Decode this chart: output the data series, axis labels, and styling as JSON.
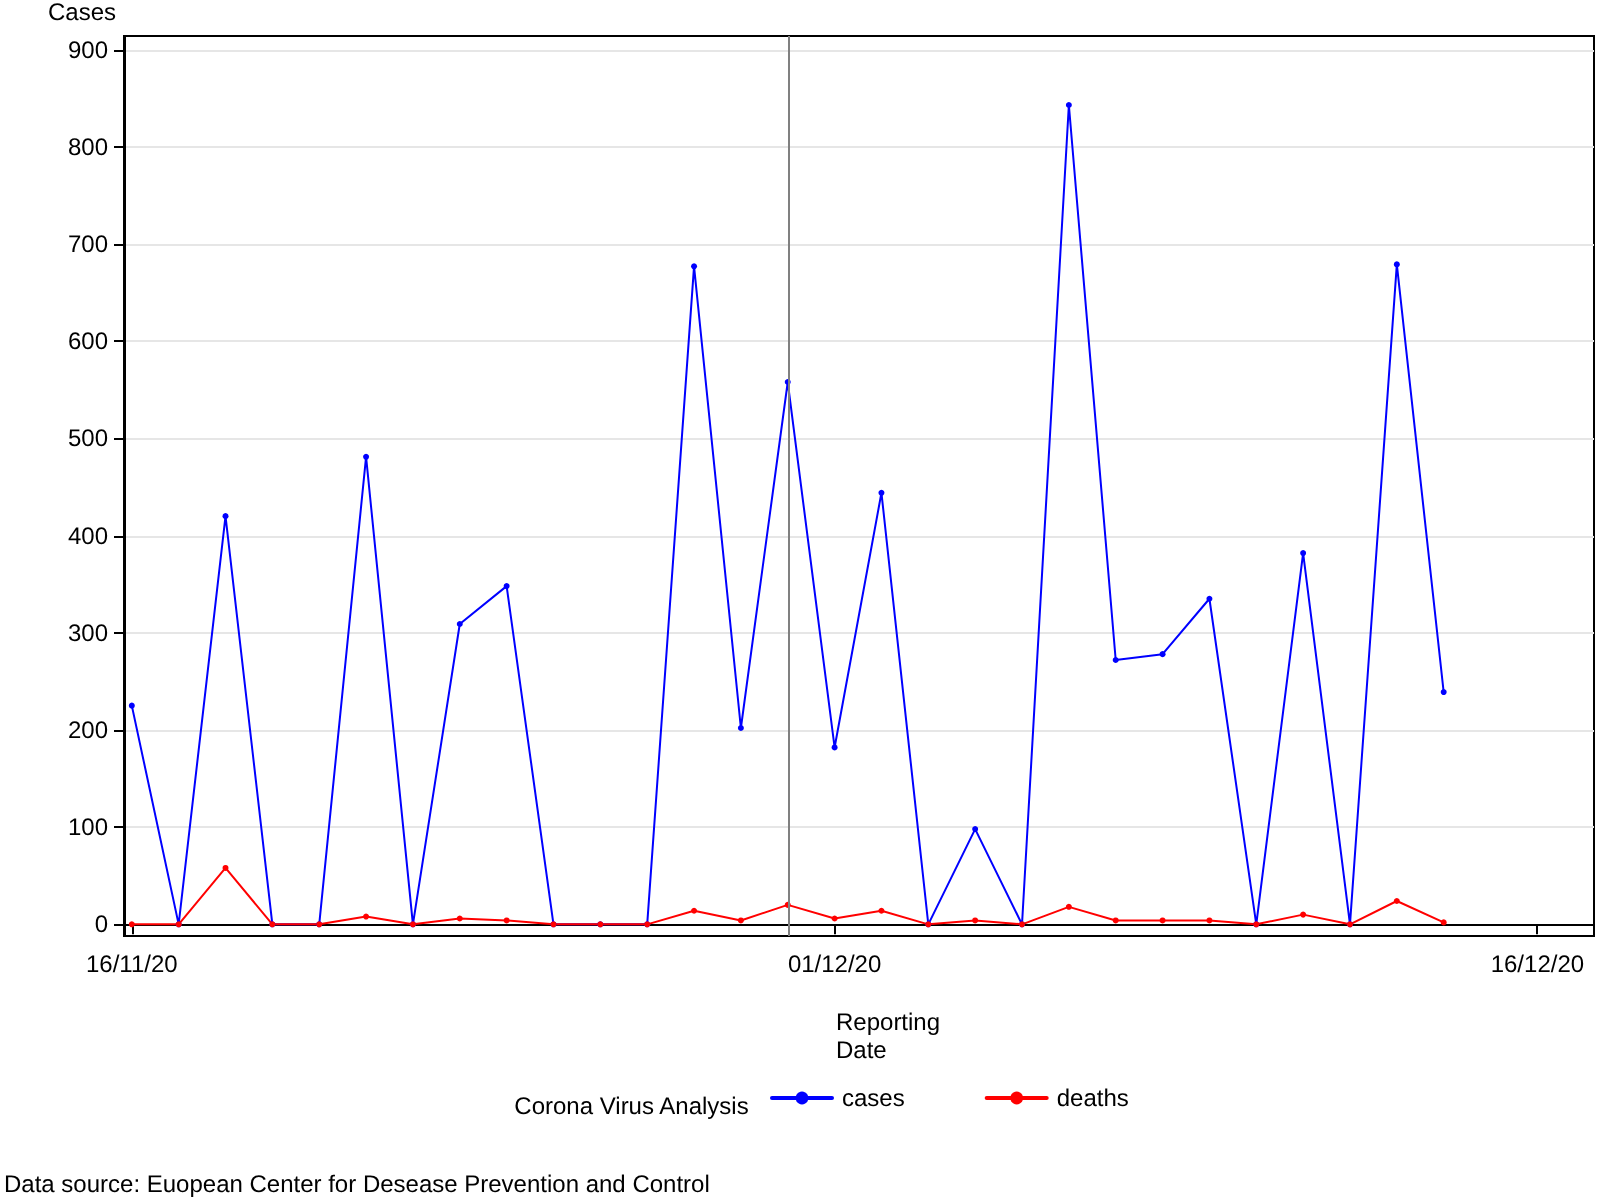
{
  "chart_data": {
    "type": "line",
    "xlabel": "Reporting\nDate",
    "ylabel": "Cases",
    "legend_title": "Corona Virus Analysis",
    "legend": "bottom",
    "grid": "y",
    "marker": "circle",
    "line_style": "solid",
    "x": [
      "2020-11-16",
      "2020-11-17",
      "2020-11-18",
      "2020-11-19",
      "2020-11-20",
      "2020-11-21",
      "2020-11-22",
      "2020-11-23",
      "2020-11-24",
      "2020-11-25",
      "2020-11-26",
      "2020-11-27",
      "2020-11-28",
      "2020-11-29",
      "2020-11-30",
      "2020-12-01",
      "2020-12-02",
      "2020-12-03",
      "2020-12-04",
      "2020-12-05",
      "2020-12-06",
      "2020-12-07",
      "2020-12-08",
      "2020-12-09",
      "2020-12-10",
      "2020-12-11",
      "2020-12-12",
      "2020-12-13",
      "2020-12-14"
    ],
    "series": [
      {
        "name": "cases",
        "color": "#0000ff",
        "values": [
          225,
          0,
          420,
          0,
          0,
          481,
          0,
          309,
          348,
          0,
          0,
          0,
          677,
          202,
          558,
          182,
          444,
          0,
          98,
          0,
          843,
          272,
          278,
          335,
          0,
          382,
          0,
          679,
          239
        ]
      },
      {
        "name": "deaths",
        "color": "#ff0000",
        "values": [
          0,
          0,
          58,
          0,
          0,
          8,
          0,
          6,
          4,
          0,
          0,
          0,
          14,
          4,
          20,
          6,
          14,
          0,
          4,
          0,
          18,
          4,
          4,
          4,
          0,
          10,
          0,
          24,
          2
        ]
      }
    ],
    "xlim": [
      "2020-11-15T20:00",
      "2020-12-17T05:00"
    ],
    "xticks": [
      {
        "value": "2020-11-16",
        "label": "16/11/20"
      },
      {
        "value": "2020-12-01",
        "label": "01/12/20"
      },
      {
        "value": "2020-12-16",
        "label": "16/12/20"
      }
    ],
    "ylim": [
      -12,
      914
    ],
    "yticks": [
      0,
      100,
      200,
      300,
      400,
      500,
      600,
      700,
      800,
      900
    ],
    "ref_lines": [
      {
        "axis": "x",
        "value": "2020-11-30",
        "color": "#808080"
      }
    ],
    "annotations": [
      "Data source: Euopean Center for Desease Prevention and Control"
    ]
  }
}
